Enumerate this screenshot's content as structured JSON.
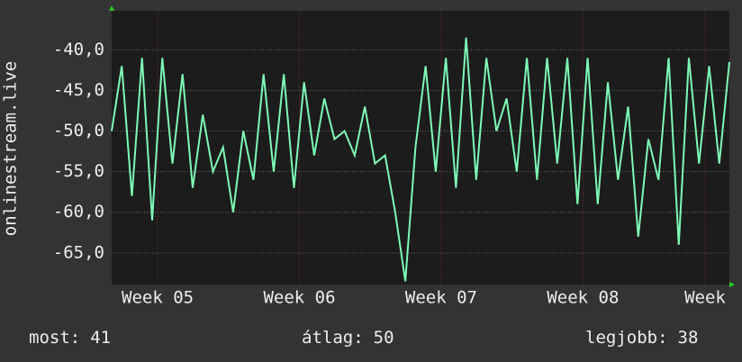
{
  "chart_data": {
    "type": "line",
    "y_label": "onlinestream.live",
    "x": [
      0,
      0.5,
      1,
      1.5,
      2,
      2.5,
      3,
      3.5,
      4,
      4.5,
      5,
      5.5,
      6,
      6.5,
      7,
      7.5,
      8,
      8.5,
      9,
      9.5,
      10,
      10.5,
      11,
      11.5,
      12,
      12.5,
      13,
      13.5,
      14,
      14.5,
      15,
      15.5,
      16,
      16.5,
      17,
      17.5,
      18,
      18.5,
      19,
      19.5,
      20,
      20.5,
      21,
      21.5,
      22,
      22.5,
      23,
      23.5,
      24,
      24.5,
      25,
      25.5,
      26,
      26.5,
      27,
      27.5,
      28,
      28.5,
      29,
      29.5,
      30,
      30.5
    ],
    "series": [
      {
        "color": "#7dfbb6",
        "values": [
          -50,
          -42,
          -58,
          -41,
          -61,
          -41,
          -54,
          -43,
          -57,
          -48,
          -55,
          -52,
          -60,
          -50,
          -56,
          -43,
          -55,
          -43,
          -57,
          -44,
          -53,
          -46,
          -51,
          -50,
          -53,
          -47,
          -54,
          -53,
          -60,
          -68.5,
          -52,
          -42,
          -55,
          -41,
          -57,
          -38.5,
          -56,
          -41,
          -50,
          -46,
          -55,
          -41,
          -56,
          -41,
          -54,
          -41,
          -59,
          -41,
          -59,
          -44,
          -56,
          -47,
          -63,
          -51,
          -56,
          -41,
          -64,
          -41,
          -54,
          -42,
          -54,
          -41.5
        ]
      }
    ],
    "xlim": [
      0,
      30.5
    ],
    "xticks": [
      {
        "value": 2.27,
        "label": "Week 05"
      },
      {
        "value": 9.27,
        "label": "Week 06"
      },
      {
        "value": 16.27,
        "label": "Week 07"
      },
      {
        "value": 23.27,
        "label": "Week 08"
      },
      {
        "value": 29.3,
        "label": "Week"
      }
    ],
    "ylim": [
      -68.9,
      -35.2
    ],
    "yticks": [
      {
        "value": -40,
        "label": "-40,0"
      },
      {
        "value": -45,
        "label": "-45,0"
      },
      {
        "value": -50,
        "label": "-50,0"
      },
      {
        "value": -55,
        "label": "-55,0"
      },
      {
        "value": -60,
        "label": "-60,0"
      },
      {
        "value": -65,
        "label": "-65,0"
      }
    ],
    "grid": true,
    "stats": [
      {
        "label": "most:",
        "value": 41
      },
      {
        "label": "átlag:",
        "value": 50
      },
      {
        "label": "legjobb:",
        "value": 38
      }
    ]
  }
}
